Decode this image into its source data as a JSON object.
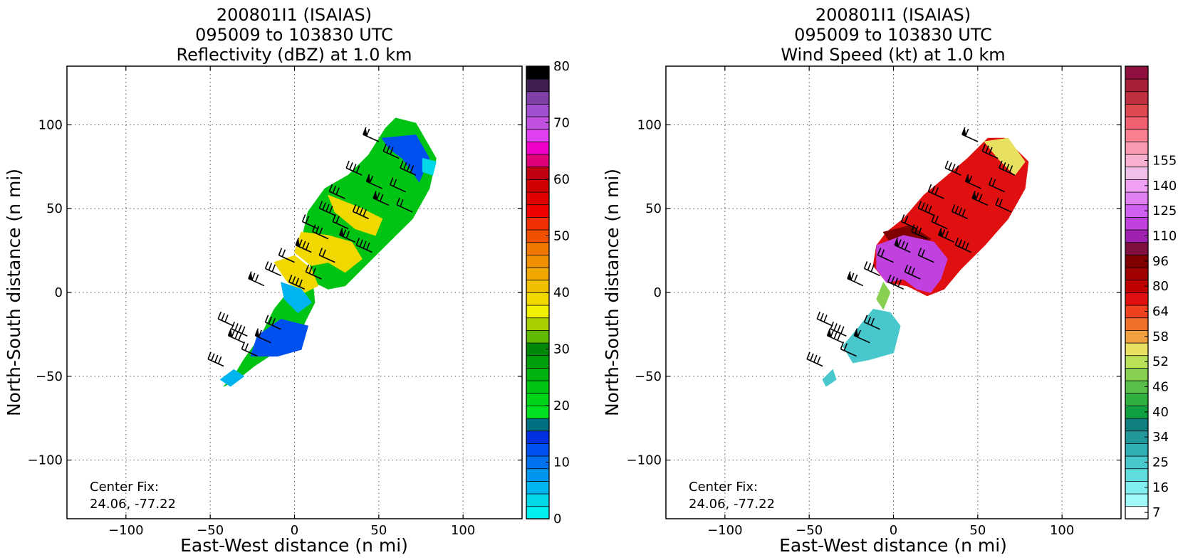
{
  "chart_data": [
    {
      "type": "heatmap",
      "title_lines": [
        "200801I1 (ISAIAS)",
        "095009 to 103830 UTC",
        "Reflectivity (dBZ) at 1.0 km"
      ],
      "xlabel": "East-West distance (n mi)",
      "ylabel": "North-South distance (n mi)",
      "xlim": [
        -135,
        135
      ],
      "ylim": [
        -135,
        135
      ],
      "xticks": [
        -100,
        -50,
        0,
        50,
        100
      ],
      "yticks": [
        -100,
        -50,
        0,
        50,
        100
      ],
      "xtick_labels": [
        "−100",
        "−50",
        "0",
        "50",
        "100"
      ],
      "ytick_labels": [
        "−100",
        "−50",
        "0",
        "50",
        "100"
      ],
      "grid": true,
      "annotation": {
        "line1": "Center Fix:",
        "line2": "24.06, -77.22"
      },
      "colorbar": {
        "min": 0,
        "max": 80,
        "ticks": [
          0,
          10,
          20,
          30,
          40,
          50,
          60,
          70,
          80
        ],
        "tick_labels": [
          "0",
          "10",
          "20",
          "30",
          "40",
          "50",
          "60",
          "70",
          "80"
        ],
        "colors": [
          "#00f0f0",
          "#00d8e8",
          "#00b4f0",
          "#0096f0",
          "#0072f0",
          "#0050f0",
          "#0030e0",
          "#006f80",
          "#00e020",
          "#00d418",
          "#00c414",
          "#00b410",
          "#00a00c",
          "#008808",
          "#60b800",
          "#a8d000",
          "#f0f000",
          "#f0d800",
          "#f0c000",
          "#f0a800",
          "#f09000",
          "#f07800",
          "#f05000",
          "#f03000",
          "#f00000",
          "#e00000",
          "#d00000",
          "#c00010",
          "#e0007a",
          "#f000c8",
          "#e040f0",
          "#c050e0",
          "#a050d0",
          "#8040a8",
          "#402050",
          "#000000"
        ]
      },
      "field_regions": [
        {
          "points": [
            [
              60,
              104
            ],
            [
              72,
              101
            ],
            [
              84,
              80
            ],
            [
              80,
              62
            ],
            [
              70,
              44
            ],
            [
              56,
              30
            ],
            [
              42,
              16
            ],
            [
              30,
              4
            ],
            [
              20,
              2
            ],
            [
              8,
              8
            ],
            [
              -4,
              0
            ],
            [
              -12,
              -10
            ],
            [
              -20,
              -26
            ],
            [
              -30,
              -40
            ],
            [
              -36,
              -50
            ],
            [
              -42,
              -56
            ],
            [
              -34,
              -52
            ],
            [
              -24,
              -44
            ],
            [
              -12,
              -36
            ],
            [
              2,
              -30
            ],
            [
              6,
              -18
            ],
            [
              12,
              -6
            ],
            [
              10,
              14
            ],
            [
              4,
              30
            ],
            [
              8,
              48
            ],
            [
              18,
              62
            ],
            [
              32,
              70
            ],
            [
              44,
              82
            ],
            [
              54,
              98
            ]
          ],
          "color": "#00c414"
        },
        {
          "points": [
            [
              52,
              92
            ],
            [
              72,
              94
            ],
            [
              80,
              80
            ],
            [
              74,
              66
            ],
            [
              64,
              80
            ],
            [
              56,
              86
            ]
          ],
          "color": "#0050f0"
        },
        {
          "points": [
            [
              76,
              80
            ],
            [
              84,
              78
            ],
            [
              82,
              70
            ],
            [
              76,
              72
            ]
          ],
          "color": "#00d8e8"
        },
        {
          "points": [
            [
              20,
              58
            ],
            [
              40,
              50
            ],
            [
              52,
              44
            ],
            [
              48,
              34
            ],
            [
              36,
              38
            ],
            [
              24,
              48
            ]
          ],
          "color": "#f0d800"
        },
        {
          "points": [
            [
              4,
              36
            ],
            [
              20,
              34
            ],
            [
              34,
              30
            ],
            [
              40,
              20
            ],
            [
              30,
              12
            ],
            [
              20,
              18
            ],
            [
              10,
              16
            ],
            [
              0,
              24
            ]
          ],
          "color": "#f0d800"
        },
        {
          "points": [
            [
              -12,
              18
            ],
            [
              0,
              22
            ],
            [
              10,
              14
            ],
            [
              14,
              4
            ],
            [
              6,
              0
            ],
            [
              -4,
              6
            ]
          ],
          "color": "#f0d800"
        },
        {
          "points": [
            [
              -22,
              -26
            ],
            [
              -8,
              -16
            ],
            [
              8,
              -20
            ],
            [
              4,
              -34
            ],
            [
              -10,
              -38
            ],
            [
              -26,
              -38
            ]
          ],
          "color": "#0050f0"
        },
        {
          "points": [
            [
              -8,
              6
            ],
            [
              4,
              2
            ],
            [
              10,
              -6
            ],
            [
              2,
              -12
            ],
            [
              -6,
              -4
            ]
          ],
          "color": "#00b4f0"
        },
        {
          "points": [
            [
              -44,
              -52
            ],
            [
              -36,
              -46
            ],
            [
              -30,
              -50
            ],
            [
              -38,
              -56
            ]
          ],
          "color": "#00b4f0"
        }
      ]
    },
    {
      "type": "heatmap",
      "title_lines": [
        "200801I1 (ISAIAS)",
        "095009 to 103830 UTC",
        "Wind Speed (kt) at 1.0 km"
      ],
      "xlabel": "East-West distance (n mi)",
      "ylabel": "North-South distance (n mi)",
      "xlim": [
        -135,
        135
      ],
      "ylim": [
        -135,
        135
      ],
      "xticks": [
        -100,
        -50,
        0,
        50,
        100
      ],
      "yticks": [
        -100,
        -50,
        0,
        50,
        100
      ],
      "xtick_labels": [
        "−100",
        "−50",
        "0",
        "50",
        "100"
      ],
      "ytick_labels": [
        "−100",
        "−50",
        "0",
        "50",
        "100"
      ],
      "grid": true,
      "annotation": {
        "line1": "Center Fix:",
        "line2": "24.06, -77.22"
      },
      "colorbar": {
        "tick_labels": [
          "7",
          "16",
          "25",
          "34",
          "40",
          "46",
          "52",
          "58",
          "64",
          "80",
          "96",
          "110",
          "125",
          "140",
          "155"
        ],
        "tick_bins": [
          0,
          2,
          4,
          6,
          8,
          10,
          12,
          14,
          16,
          18,
          20,
          22,
          24,
          26,
          28
        ],
        "colors": [
          "#ffffff",
          "#a0fafa",
          "#80eeee",
          "#60dcdc",
          "#48c8cc",
          "#30b0b4",
          "#20989c",
          "#108080",
          "#10a040",
          "#30b040",
          "#58c048",
          "#88d050",
          "#b8e058",
          "#e8e060",
          "#f0a040",
          "#f07028",
          "#f04020",
          "#e01010",
          "#c00000",
          "#a00000",
          "#800000",
          "#801040",
          "#a020b0",
          "#c040e0",
          "#d060f0",
          "#e080f0",
          "#f0a0f0",
          "#f0c0e8",
          "#f8b0d0",
          "#f89ab0",
          "#f88090",
          "#f06070",
          "#e04850",
          "#c03040",
          "#a82038",
          "#901040"
        ]
      },
      "field_regions": [
        {
          "points": [
            [
              56,
              92
            ],
            [
              66,
              92
            ],
            [
              80,
              78
            ],
            [
              78,
              62
            ],
            [
              68,
              44
            ],
            [
              54,
              28
            ],
            [
              40,
              14
            ],
            [
              30,
              2
            ],
            [
              20,
              -2
            ],
            [
              8,
              4
            ],
            [
              -4,
              6
            ],
            [
              -12,
              16
            ],
            [
              -10,
              28
            ],
            [
              -4,
              36
            ],
            [
              6,
              44
            ],
            [
              18,
              58
            ],
            [
              30,
              68
            ],
            [
              44,
              80
            ]
          ],
          "color": "#e01010"
        },
        {
          "points": [
            [
              54,
              90
            ],
            [
              68,
              92
            ],
            [
              78,
              78
            ],
            [
              72,
              70
            ],
            [
              62,
              80
            ]
          ],
          "color": "#e8e060"
        },
        {
          "points": [
            [
              -6,
              36
            ],
            [
              10,
              40
            ],
            [
              22,
              32
            ],
            [
              14,
              22
            ],
            [
              2,
              24
            ]
          ],
          "color": "#800000"
        },
        {
          "points": [
            [
              -10,
              28
            ],
            [
              6,
              34
            ],
            [
              24,
              30
            ],
            [
              32,
              20
            ],
            [
              28,
              8
            ],
            [
              22,
              0
            ],
            [
              14,
              2
            ],
            [
              6,
              8
            ],
            [
              -4,
              6
            ],
            [
              -10,
              14
            ]
          ],
          "color": "#c040e0"
        },
        {
          "points": [
            [
              -6,
              6
            ],
            [
              -2,
              0
            ],
            [
              -6,
              -10
            ],
            [
              -10,
              -4
            ]
          ],
          "color": "#88d050"
        },
        {
          "points": [
            [
              -12,
              -10
            ],
            [
              -2,
              -12
            ],
            [
              4,
              -20
            ],
            [
              0,
              -36
            ],
            [
              -14,
              -40
            ],
            [
              -24,
              -42
            ],
            [
              -30,
              -32
            ],
            [
              -20,
              -20
            ]
          ],
          "color": "#48c8cc"
        },
        {
          "points": [
            [
              -42,
              -52
            ],
            [
              -36,
              -46
            ],
            [
              -34,
              -52
            ],
            [
              -40,
              -56
            ]
          ],
          "color": "#48c8cc"
        }
      ]
    }
  ]
}
